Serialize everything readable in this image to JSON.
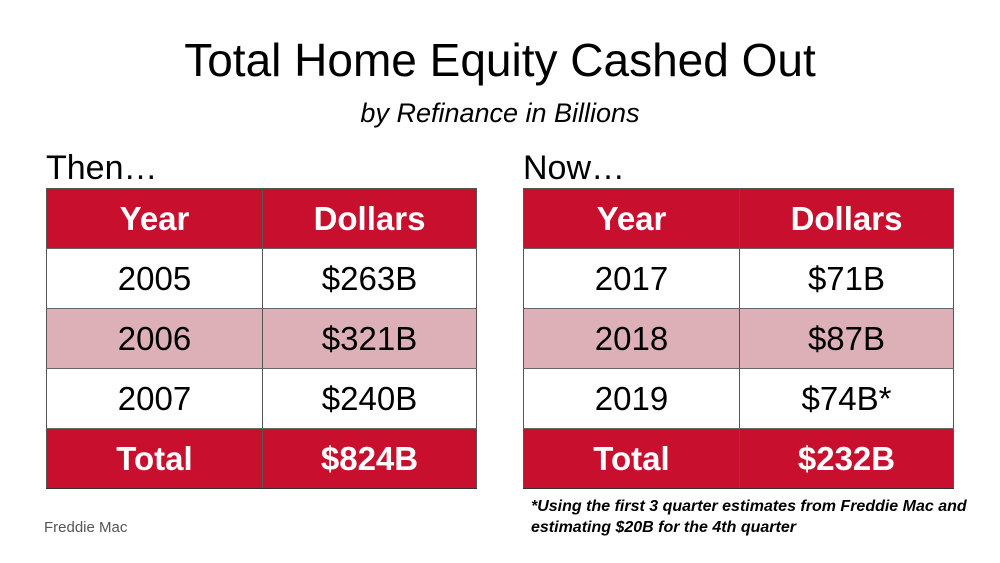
{
  "title": "Total Home Equity Cashed Out",
  "subtitle": "by Refinance in Billions",
  "then": {
    "label": "Then…",
    "headers": [
      "Year",
      "Dollars"
    ],
    "rows": [
      {
        "year": "2005",
        "dollars": "$263B"
      },
      {
        "year": "2006",
        "dollars": "$321B"
      },
      {
        "year": "2007",
        "dollars": "$240B"
      }
    ],
    "total": {
      "label": "Total",
      "dollars": "$824B"
    }
  },
  "now": {
    "label": "Now…",
    "headers": [
      "Year",
      "Dollars"
    ],
    "rows": [
      {
        "year": "2017",
        "dollars": "$71B"
      },
      {
        "year": "2018",
        "dollars": "$87B"
      },
      {
        "year": "2019",
        "dollars": "$74B*"
      }
    ],
    "total": {
      "label": "Total",
      "dollars": "$232B"
    }
  },
  "source": "Freddie Mac",
  "footnote": "*Using the first 3 quarter estimates from Freddie Mac and estimating $20B for the 4th quarter",
  "colors": {
    "header_red": "#c8102e",
    "row_pink": "#ddb0b7"
  }
}
